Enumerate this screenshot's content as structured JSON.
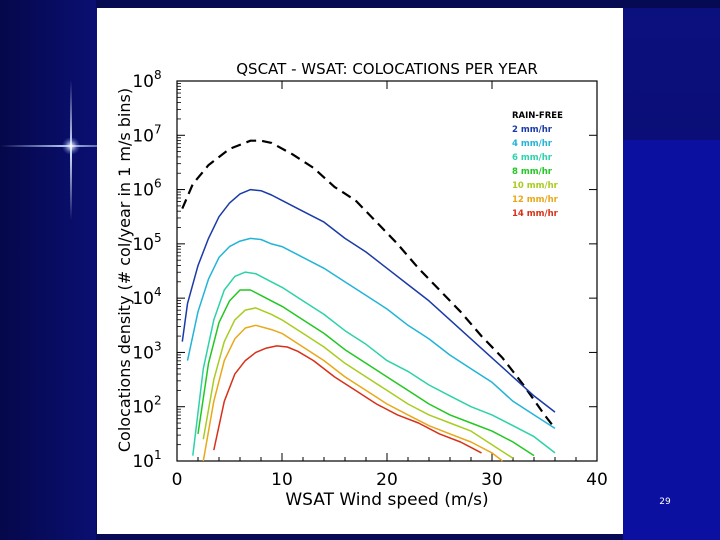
{
  "slide": {
    "number": "29"
  },
  "chart_data": {
    "type": "line",
    "title": "QSCAT - WSAT: COLOCATIONS PER YEAR",
    "xlabel": "WSAT Wind speed (m/s)",
    "ylabel": "Colocations density (# col/year in 1 m/s bins)",
    "xlim": [
      0,
      40
    ],
    "ylim_log10": [
      1,
      8
    ],
    "yscale": "log",
    "x_ticks": [
      0,
      10,
      20,
      30,
      40
    ],
    "x_tick_labels": [
      "0",
      "10",
      "20",
      "30",
      "40"
    ],
    "y_tick_exponents": [
      1,
      2,
      3,
      4,
      5,
      6,
      7,
      8
    ],
    "y_tick_base": "10",
    "legend_position": "top-right",
    "series": [
      {
        "name": "RAIN-FREE",
        "color": "#000000",
        "dashed": true,
        "x": [
          0.5,
          1.5,
          3,
          5,
          7,
          8,
          9,
          11,
          13,
          15,
          17,
          19,
          21,
          23,
          25,
          27,
          29,
          31,
          33,
          35,
          36
        ],
        "log10": [
          5.65,
          6.1,
          6.45,
          6.75,
          6.9,
          6.9,
          6.86,
          6.65,
          6.4,
          6.05,
          5.8,
          5.4,
          5.0,
          4.55,
          4.15,
          3.75,
          3.3,
          2.9,
          2.4,
          1.85,
          1.6
        ]
      },
      {
        "name": "2 mm/hr",
        "color": "#1a3aa8",
        "dashed": false,
        "x": [
          0.5,
          1,
          2,
          3,
          4,
          5,
          6,
          7,
          8,
          9,
          10,
          12,
          14,
          16,
          18,
          20,
          22,
          24,
          26,
          28,
          30,
          32,
          34,
          36
        ],
        "log10": [
          3.2,
          3.9,
          4.6,
          5.1,
          5.5,
          5.75,
          5.92,
          6.0,
          5.98,
          5.9,
          5.8,
          5.6,
          5.4,
          5.1,
          4.85,
          4.55,
          4.25,
          3.95,
          3.6,
          3.25,
          2.9,
          2.55,
          2.2,
          1.9
        ]
      },
      {
        "name": "4 mm/hr",
        "color": "#22b4d8",
        "dashed": false,
        "x": [
          1,
          2,
          3,
          4,
          5,
          6,
          7,
          8,
          9,
          10,
          12,
          14,
          16,
          18,
          20,
          22,
          24,
          26,
          28,
          30,
          32,
          34,
          36
        ],
        "log10": [
          2.85,
          3.75,
          4.35,
          4.75,
          4.95,
          5.05,
          5.1,
          5.08,
          5.0,
          4.95,
          4.75,
          4.55,
          4.3,
          4.05,
          3.8,
          3.5,
          3.25,
          2.95,
          2.7,
          2.45,
          2.1,
          1.85,
          1.6
        ]
      },
      {
        "name": "6 mm/hr",
        "color": "#2dd2a8",
        "dashed": false,
        "x": [
          1.5,
          2.5,
          3.5,
          4.5,
          5.5,
          6.5,
          7.5,
          9,
          10,
          12,
          14,
          16,
          18,
          20,
          22,
          24,
          26,
          28,
          30,
          32,
          34,
          36
        ],
        "log10": [
          1.1,
          2.7,
          3.6,
          4.15,
          4.4,
          4.48,
          4.45,
          4.3,
          4.2,
          3.95,
          3.7,
          3.4,
          3.15,
          2.85,
          2.65,
          2.4,
          2.2,
          2.0,
          1.85,
          1.65,
          1.45,
          1.15
        ]
      },
      {
        "name": "8 mm/hr",
        "color": "#22c822",
        "dashed": false,
        "x": [
          2,
          3,
          4,
          5,
          6,
          7,
          8,
          9,
          10,
          12,
          14,
          16,
          18,
          20,
          22,
          24,
          26,
          28,
          30,
          32,
          34
        ],
        "log10": [
          1.5,
          2.8,
          3.55,
          3.95,
          4.15,
          4.15,
          4.05,
          3.95,
          3.85,
          3.6,
          3.35,
          3.05,
          2.8,
          2.55,
          2.3,
          2.05,
          1.85,
          1.7,
          1.55,
          1.35,
          1.1
        ]
      },
      {
        "name": "10 mm/hr",
        "color": "#a8cc20",
        "dashed": false,
        "x": [
          2.5,
          3.5,
          4.5,
          5.5,
          6.5,
          7.5,
          9,
          10,
          12,
          14,
          16,
          18,
          20,
          22,
          24,
          26,
          28,
          30,
          32
        ],
        "log10": [
          1.4,
          2.5,
          3.2,
          3.6,
          3.78,
          3.82,
          3.7,
          3.6,
          3.35,
          3.1,
          2.8,
          2.55,
          2.3,
          2.05,
          1.85,
          1.7,
          1.55,
          1.3,
          1.05
        ]
      },
      {
        "name": "12 mm/hr",
        "color": "#e8a818",
        "dashed": false,
        "x": [
          2.5,
          3.5,
          4.5,
          5.5,
          6.5,
          7.5,
          9,
          10,
          12,
          14,
          16,
          18,
          20,
          22,
          24,
          26,
          28,
          30,
          31
        ],
        "log10": [
          1.0,
          2.1,
          2.85,
          3.25,
          3.45,
          3.5,
          3.42,
          3.35,
          3.1,
          2.85,
          2.55,
          2.3,
          2.05,
          1.85,
          1.65,
          1.5,
          1.35,
          1.15,
          1.0
        ]
      },
      {
        "name": "14 mm/hr",
        "color": "#d83018",
        "dashed": false,
        "x": [
          3.5,
          4.5,
          5.5,
          6.5,
          7.5,
          8.5,
          9.5,
          10.5,
          11.5,
          13,
          15,
          17,
          19,
          21,
          23,
          25,
          27,
          28,
          29
        ],
        "log10": [
          1.2,
          2.1,
          2.6,
          2.85,
          3.0,
          3.08,
          3.12,
          3.1,
          3.02,
          2.85,
          2.55,
          2.3,
          2.05,
          1.85,
          1.7,
          1.5,
          1.35,
          1.25,
          1.15
        ]
      }
    ]
  }
}
